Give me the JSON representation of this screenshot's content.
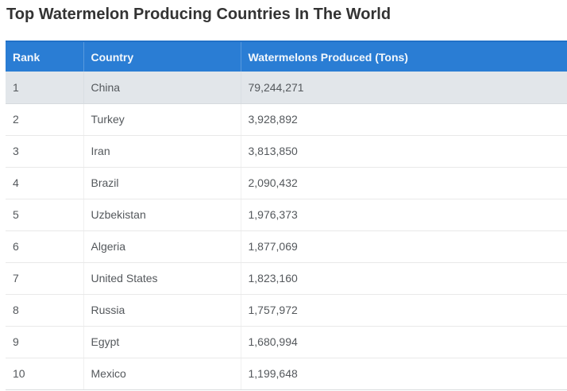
{
  "page": {
    "title": "Top Watermelon Producing Countries In The World"
  },
  "table": {
    "columns": [
      "Rank",
      "Country",
      "Watermelons Produced (Tons)"
    ],
    "rows": [
      {
        "rank": "1",
        "country": "China",
        "tons": "79,244,271"
      },
      {
        "rank": "2",
        "country": "Turkey",
        "tons": "3,928,892"
      },
      {
        "rank": "3",
        "country": "Iran",
        "tons": "3,813,850"
      },
      {
        "rank": "4",
        "country": "Brazil",
        "tons": "2,090,432"
      },
      {
        "rank": "5",
        "country": "Uzbekistan",
        "tons": "1,976,373"
      },
      {
        "rank": "6",
        "country": "Algeria",
        "tons": "1,877,069"
      },
      {
        "rank": "7",
        "country": "United States",
        "tons": "1,823,160"
      },
      {
        "rank": "8",
        "country": "Russia",
        "tons": "1,757,972"
      },
      {
        "rank": "9",
        "country": "Egypt",
        "tons": "1,680,994"
      },
      {
        "rank": "10",
        "country": "Mexico",
        "tons": "1,199,648"
      }
    ]
  },
  "colors": {
    "header_bg": "#2a7dd4",
    "header_text": "#f2f7fc",
    "highlight_row_bg": "#e2e6ea",
    "body_text": "#54585c",
    "row_border": "#e9e9e9",
    "title_text": "#333333"
  },
  "chart_data": {
    "type": "table",
    "title": "Top Watermelon Producing Countries In The World",
    "columns": [
      "Rank",
      "Country",
      "Watermelons Produced (Tons)"
    ],
    "rows": [
      [
        1,
        "China",
        79244271
      ],
      [
        2,
        "Turkey",
        3928892
      ],
      [
        3,
        "Iran",
        3813850
      ],
      [
        4,
        "Brazil",
        2090432
      ],
      [
        5,
        "Uzbekistan",
        1976373
      ],
      [
        6,
        "Algeria",
        1877069
      ],
      [
        7,
        "United States",
        1823160
      ],
      [
        8,
        "Russia",
        1757972
      ],
      [
        9,
        "Egypt",
        1680994
      ],
      [
        10,
        "Mexico",
        1199648
      ]
    ]
  }
}
